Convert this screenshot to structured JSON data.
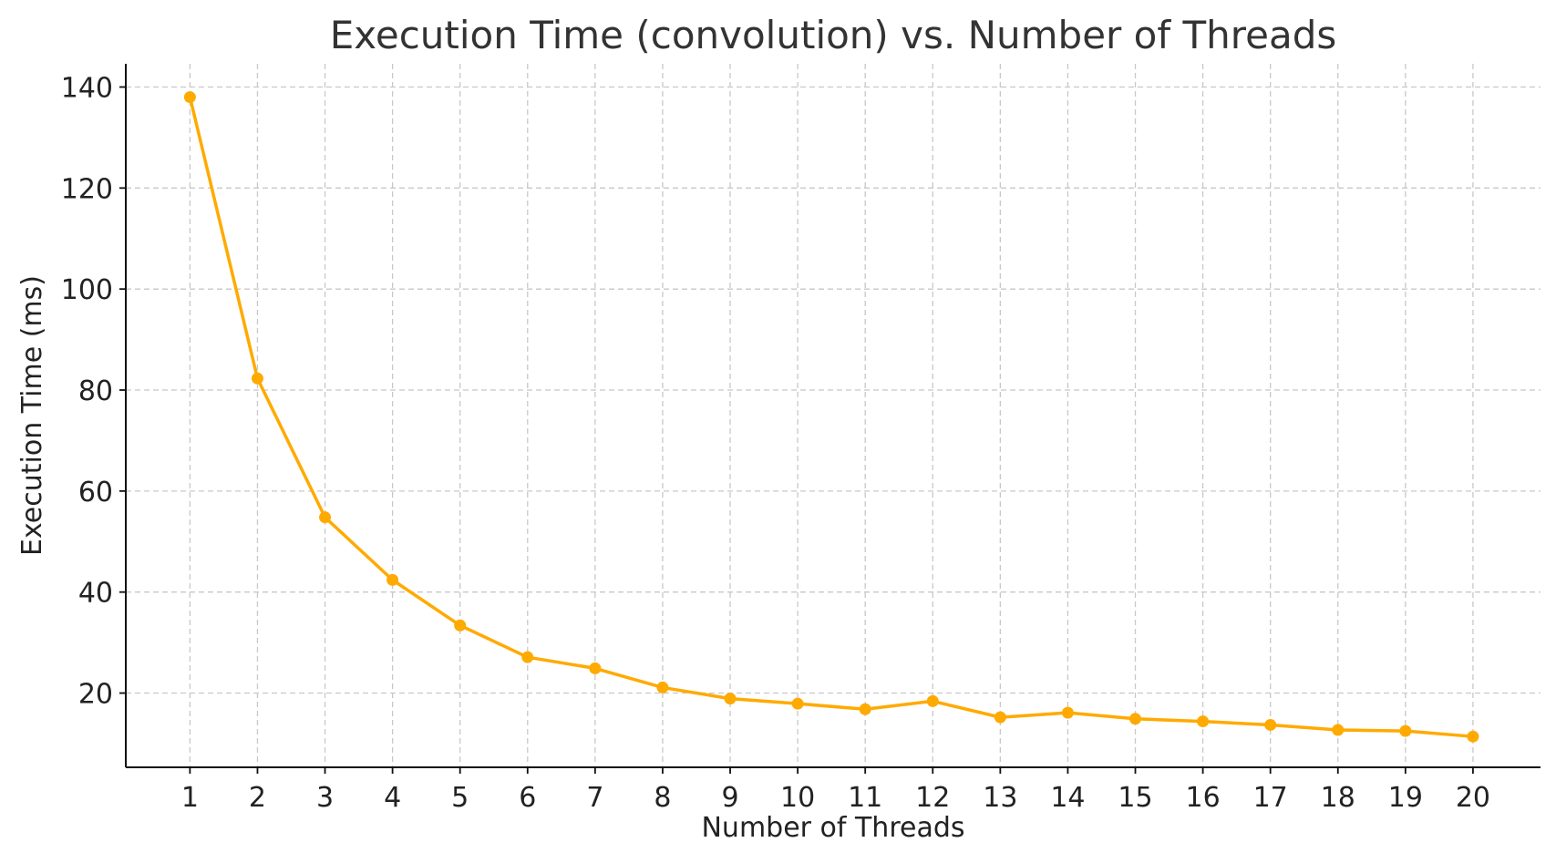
{
  "chart_data": {
    "type": "line",
    "title": "Execution Time (convolution) vs. Number of Threads",
    "xlabel": "Number of Threads",
    "ylabel": "Execution Time (ms)",
    "x": [
      1,
      2,
      3,
      4,
      5,
      6,
      7,
      8,
      9,
      10,
      11,
      12,
      13,
      14,
      15,
      16,
      17,
      18,
      19,
      20
    ],
    "series": [
      {
        "values": [
          138,
          82.3,
          54.8,
          42.4,
          33.4,
          27.1,
          24.9,
          21.1,
          18.9,
          17.9,
          16.8,
          18.4,
          15.2,
          16.1,
          14.9,
          14.4,
          13.7,
          12.7,
          12.5,
          11.4
        ],
        "color": "#FFAA00"
      }
    ],
    "xticks": [
      "1",
      "2",
      "3",
      "4",
      "5",
      "6",
      "7",
      "8",
      "9",
      "10",
      "11",
      "12",
      "13",
      "14",
      "15",
      "16",
      "17",
      "18",
      "19",
      "20"
    ],
    "yticks": [
      20,
      40,
      60,
      80,
      100,
      120,
      140
    ],
    "xlim": [
      0.05,
      21.0
    ],
    "ylim": [
      5.3,
      144.6
    ],
    "grid": true,
    "marker": "circle"
  }
}
